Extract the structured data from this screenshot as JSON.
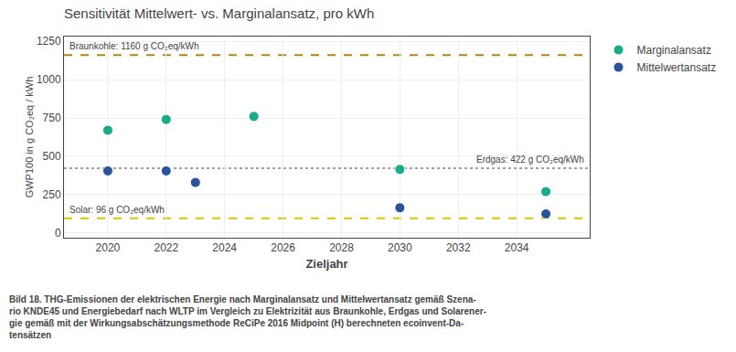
{
  "chart_data": {
    "type": "scatter",
    "title": "Sensitivität Mittelwert- vs. Marginalansatz, pro kWh",
    "x_label": "Zieljahr",
    "y_label": "GWP100 in g CO₂eq / kWh",
    "series": [
      {
        "name": "Marginalansatz",
        "color": "#1aab8a",
        "x": [
          2020,
          2022,
          2025,
          2030,
          2035
        ],
        "values": [
          670,
          740,
          760,
          415,
          270
        ]
      },
      {
        "name": "Mittelwertansatz",
        "color": "#2a5298",
        "x": [
          2020,
          2022,
          2023,
          2030,
          2035
        ],
        "values": [
          405,
          405,
          330,
          165,
          125
        ]
      }
    ],
    "xlim": [
      2018.5,
      2036.5
    ],
    "xticks": [
      2020,
      2022,
      2024,
      2026,
      2028,
      2030,
      2032,
      2034
    ],
    "ylim": [
      -30,
      1280
    ],
    "yticks": [
      0,
      250,
      500,
      750,
      1000,
      1250
    ],
    "grid": true,
    "legend": "upper right",
    "reference_lines": [
      {
        "value": 1160,
        "label": "Braunkohle: 1160 g CO₂eq/kWh",
        "color": "#b8860b",
        "line_style": "dashed"
      },
      {
        "value": 422,
        "label": "Erdgas: 422 g CO₂eq/kWh",
        "color": "#a0a0a0",
        "line_style": "dotted"
      },
      {
        "value": 96,
        "label": "Solar: 96 g CO₂eq/kWh",
        "color": "#d4c800",
        "line_style": "dashed"
      }
    ],
    "caption": [
      "Bild 18. THG-Emissionen der elektrischen Energie nach Marginalansatz und Mittelwertansatz gemäß Szena-",
      "rio KNDE45 und Energiebedarf nach WLTP im Vergleich zu Elektrizität aus Braunkohle, Erdgas und Solarener-",
      "gie gemäß mit der Wirkungsabschätzungsmethode ReCiPe 2016 Midpoint (H) berechneten ecoinvent-Da-",
      "tensätzen"
    ]
  }
}
